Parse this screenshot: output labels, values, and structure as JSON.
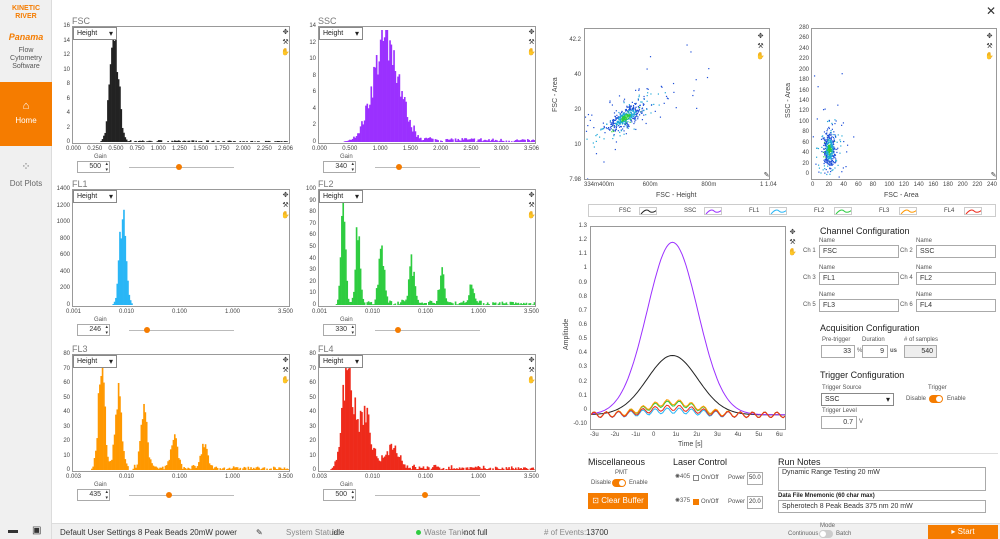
{
  "brand": {
    "line1": "KINETIC",
    "line2": "RIVER",
    "product": "Panama",
    "tagline1": "Flow",
    "tagline2": "Cytometry",
    "tagline3": "Software",
    "accent": "#f57c00"
  },
  "nav": {
    "home": "Home",
    "dot_plots": "Dot Plots"
  },
  "histograms": [
    {
      "title": "FSC",
      "mode": "Height",
      "color": "#222222",
      "gain": "500",
      "yticks": [
        "16",
        "14",
        "12",
        "10",
        "8",
        "6",
        "4",
        "2",
        "0"
      ],
      "xticks": [
        "0.000",
        "0.250",
        "0.500",
        "0.750",
        "1.000",
        "1.250",
        "1.500",
        "1.750",
        "2.000",
        "2.250",
        "2.606"
      ],
      "gain_level": 0.48
    },
    {
      "title": "SSC",
      "mode": "Height",
      "color": "#9b30ff",
      "gain": "340",
      "yticks": [
        "14",
        "12",
        "10",
        "8",
        "6",
        "4",
        "2",
        "0"
      ],
      "xticks": [
        "0.000",
        "0.500",
        "1.000",
        "1.500",
        "2.000",
        "2.500",
        "3.000",
        "3.506"
      ],
      "gain_level": 0.23
    },
    {
      "title": "FL1",
      "mode": "Height",
      "color": "#29b6f6",
      "gain": "246",
      "yticks": [
        "1400",
        "1200",
        "1000",
        "800",
        "600",
        "400",
        "200",
        "0"
      ],
      "xticks": [
        "0.001",
        "0.010",
        "0.100",
        "1.000",
        "3.500"
      ],
      "gain_level": 0.17
    },
    {
      "title": "FL2",
      "mode": "Height",
      "color": "#2ecc40",
      "gain": "330",
      "yticks": [
        "100",
        "90",
        "80",
        "70",
        "60",
        "50",
        "40",
        "30",
        "20",
        "10",
        "0"
      ],
      "xticks": [
        "0.001",
        "0.010",
        "0.100",
        "1.000",
        "3.500"
      ],
      "gain_level": 0.22
    },
    {
      "title": "FL3",
      "mode": "Height",
      "color": "#ff9800",
      "gain": "435",
      "yticks": [
        "80",
        "70",
        "60",
        "50",
        "40",
        "30",
        "20",
        "10",
        "0"
      ],
      "xticks": [
        "0.003",
        "0.010",
        "0.100",
        "1.000",
        "3.500"
      ],
      "gain_level": 0.38
    },
    {
      "title": "FL4",
      "mode": "Height",
      "color": "#ee2a1b",
      "gain": "500",
      "yticks": [
        "80",
        "70",
        "60",
        "50",
        "40",
        "30",
        "20",
        "10",
        "0"
      ],
      "xticks": [
        "0.003",
        "0.010",
        "0.100",
        "1.000",
        "3.500"
      ],
      "gain_level": 0.48
    }
  ],
  "gain_label": "Gain",
  "dot1": {
    "ylabel": "FSC - Area",
    "xlabel": "FSC - Height",
    "yticks": [
      "42.2",
      "40",
      "20",
      "10",
      "7.98"
    ],
    "xticks": [
      "334m400m",
      "600m",
      "800m",
      "1 1.04"
    ]
  },
  "dot2": {
    "ylabel": "SSC - Area",
    "xlabel": "FSC - Area",
    "yticks": [
      "280",
      "260",
      "240",
      "220",
      "200",
      "180",
      "160",
      "140",
      "120",
      "100",
      "80",
      "60",
      "40",
      "20",
      "0"
    ],
    "xticks": [
      "0",
      "20",
      "40",
      "60",
      "80",
      "100",
      "120",
      "140",
      "160",
      "180",
      "200",
      "220",
      "240"
    ]
  },
  "legend": [
    {
      "name": "FSC",
      "color": "#222222"
    },
    {
      "name": "SSC",
      "color": "#9b30ff"
    },
    {
      "name": "FL1",
      "color": "#29b6f6"
    },
    {
      "name": "FL2",
      "color": "#2ecc40"
    },
    {
      "name": "FL3",
      "color": "#ff9800"
    },
    {
      "name": "FL4",
      "color": "#ee2a1b"
    }
  ],
  "waveform": {
    "ylabel": "Amplitude",
    "xlabel": "Time [s]",
    "yticks": [
      "1.3",
      "1.2",
      "1.1",
      "1",
      "0.9",
      "0.8",
      "0.7",
      "0.6",
      "0.5",
      "0.4",
      "0.3",
      "0.2",
      "0.1",
      "0",
      "-0.10"
    ],
    "xticks": [
      "-3u",
      "-2u",
      "-1u",
      "0",
      "1u",
      "2u",
      "3u",
      "4u",
      "5u",
      "6u"
    ]
  },
  "channel_cfg": {
    "title": "Channel Configuration",
    "name_label": "Name",
    "channels": [
      {
        "ch": "Ch 1",
        "name": "FSC"
      },
      {
        "ch": "Ch 2",
        "name": "SSC"
      },
      {
        "ch": "Ch 3",
        "name": "FL1"
      },
      {
        "ch": "Ch 4",
        "name": "FL2"
      },
      {
        "ch": "Ch 5",
        "name": "FL3"
      },
      {
        "ch": "Ch 6",
        "name": "FL4"
      }
    ]
  },
  "acq_cfg": {
    "title": "Acquisition Configuration",
    "pre_label": "Pre-trigger",
    "pre": "33",
    "pre_unit": "%",
    "dur_label": "Duration",
    "dur": "9",
    "dur_unit": "us",
    "samples_label": "# of samples",
    "samples": "540"
  },
  "trig_cfg": {
    "title": "Trigger Configuration",
    "source_label": "Trigger Source",
    "source": "SSC",
    "trigger_label": "Trigger",
    "disable": "Disable",
    "enable": "Enable",
    "level_label": "Trigger Level",
    "level": "0.7",
    "level_unit": "V"
  },
  "misc": {
    "title": "Miscellaneous",
    "pmt": "PMT",
    "disable": "Disable",
    "enable": "Enable",
    "clear": "Clear Buffer"
  },
  "laser": {
    "title": "Laser Control",
    "onoff": "On/Off",
    "power_label": "Power",
    "l1_sub": "405",
    "l1_power": "50.0",
    "l2_sub": "375",
    "l2_power": "20.0"
  },
  "notes": {
    "title": "Run Notes",
    "text": "Dynamic Range Testing 20 mW",
    "mnemonic_label": "Data File Mnemonic (60 char max)",
    "mnemonic": "Spherotech 8 Peak Beads 375  nm 20 mW"
  },
  "status": {
    "settings": "Default User Settings 8 Peak Beads 20mW power",
    "sys_label": "System Status:",
    "sys": "idle",
    "waste_label": "Waste Tank:",
    "waste": "not full",
    "events_label": "# of Events:",
    "events": "13700",
    "mode_label": "Mode",
    "continuous": "Continuous",
    "batch": "Batch",
    "start": "Start"
  }
}
